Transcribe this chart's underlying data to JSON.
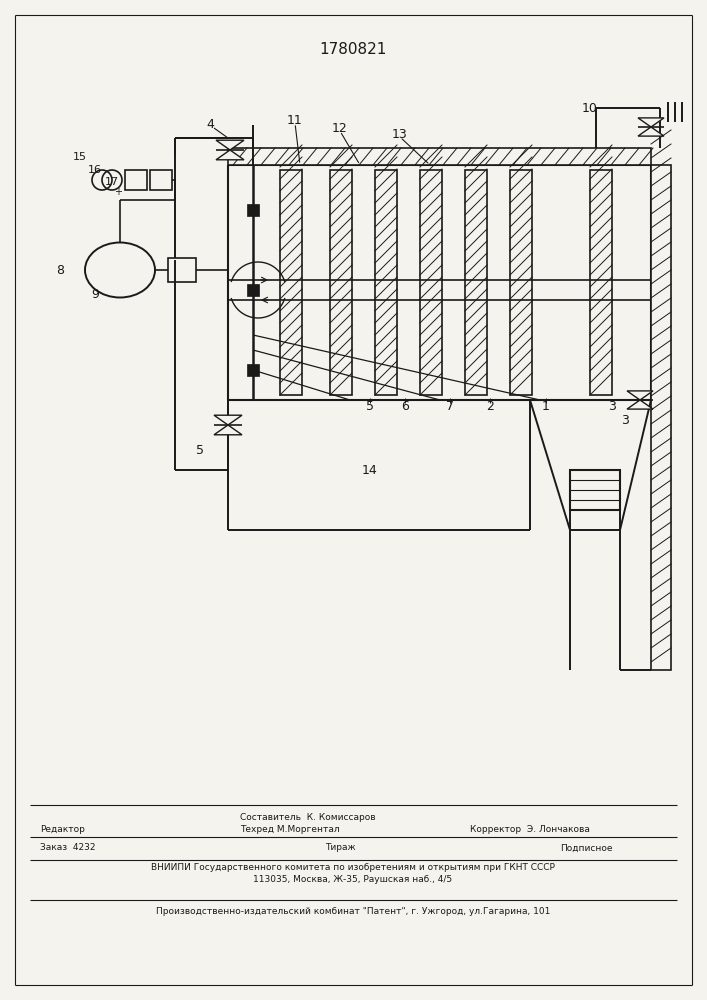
{
  "title": "1780821",
  "bg": "#f5f3ee",
  "lc": "#1a1a1a",
  "footer": {
    "sestavitel": "Составитель  К. Комиссаров",
    "tehred": "Техред М.Моргентал",
    "redaktor": "Редактор",
    "korrektor": "Корректор  Э. Лончакова",
    "zakaz": "Заказ  4232",
    "tirazh": "Тираж",
    "podpisnoe": "Подписное",
    "vniip1": "ВНИИПИ Государственного комитета по изобретениям и открытиям при ГКНТ СССР",
    "vniip2": "113035, Москва, Ж-35, Раушская наб., 4/5",
    "proizv": "Производственно-издательский комбинат \"Патент\", г. Ужгород, ул.Гагарина, 101"
  }
}
